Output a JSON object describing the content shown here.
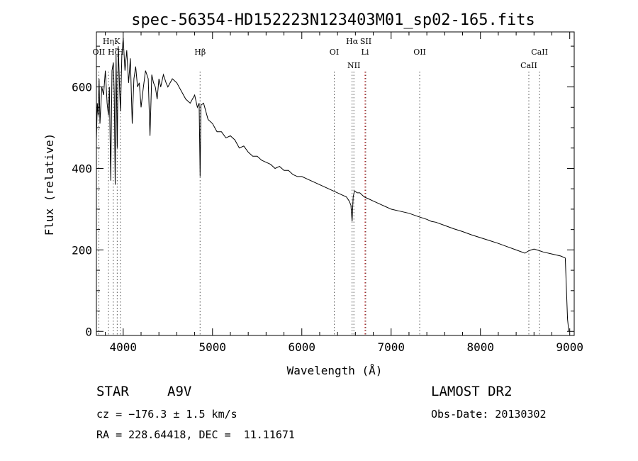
{
  "chart_data": {
    "type": "line",
    "title": "spec-56354-HD152223N123403M01_sp02-165.fits",
    "xlabel": "Wavelength (Å)",
    "ylabel": "Flux (relative)",
    "xlim": [
      3700,
      9050
    ],
    "ylim": [
      -10,
      735
    ],
    "xticks": [
      4000,
      5000,
      6000,
      7000,
      8000,
      9000
    ],
    "yticks": [
      0,
      200,
      400,
      600
    ],
    "grid": false,
    "line_color": "#000000",
    "series": [
      {
        "x": [
          3700,
          3710,
          3720,
          3730,
          3740,
          3760,
          3780,
          3800,
          3820,
          3835,
          3845,
          3860,
          3875,
          3890,
          3900,
          3910,
          3920,
          3933,
          3945,
          3960,
          3970,
          3985,
          4000,
          4020,
          4040,
          4060,
          4080,
          4101,
          4120,
          4140,
          4160,
          4180,
          4200,
          4226,
          4250,
          4280,
          4300,
          4320,
          4340,
          4360,
          4380,
          4400,
          4420,
          4450,
          4480,
          4500,
          4550,
          4600,
          4650,
          4700,
          4750,
          4800,
          4830,
          4850,
          4861,
          4870,
          4900,
          4950,
          5000,
          5050,
          5100,
          5150,
          5200,
          5250,
          5300,
          5350,
          5400,
          5450,
          5500,
          5550,
          5600,
          5650,
          5700,
          5750,
          5800,
          5850,
          5900,
          5950,
          6000,
          6050,
          6100,
          6150,
          6200,
          6250,
          6300,
          6350,
          6400,
          6450,
          6500,
          6530,
          6550,
          6563,
          6575,
          6590,
          6620,
          6650,
          6700,
          6750,
          6800,
          6850,
          6900,
          6950,
          7000,
          7100,
          7200,
          7300,
          7400,
          7450,
          7500,
          7600,
          7700,
          7800,
          7900,
          8000,
          8100,
          8200,
          8300,
          8400,
          8498,
          8542,
          8600,
          8662,
          8700,
          8800,
          8900,
          8950,
          8975,
          8985,
          8990
        ],
        "y": [
          470,
          560,
          530,
          620,
          510,
          600,
          580,
          640,
          560,
          530,
          600,
          370,
          640,
          660,
          580,
          360,
          680,
          450,
          700,
          590,
          540,
          680,
          720,
          640,
          690,
          610,
          670,
          510,
          620,
          650,
          600,
          610,
          550,
          600,
          640,
          620,
          480,
          630,
          610,
          600,
          570,
          620,
          600,
          630,
          610,
          600,
          620,
          610,
          590,
          570,
          560,
          580,
          550,
          560,
          380,
          555,
          560,
          520,
          510,
          490,
          490,
          475,
          480,
          470,
          450,
          455,
          440,
          430,
          430,
          420,
          415,
          410,
          400,
          405,
          395,
          395,
          385,
          380,
          380,
          375,
          370,
          365,
          360,
          355,
          350,
          345,
          340,
          335,
          330,
          320,
          310,
          270,
          330,
          345,
          340,
          340,
          330,
          325,
          320,
          315,
          310,
          305,
          300,
          295,
          290,
          282,
          275,
          270,
          268,
          260,
          252,
          245,
          237,
          230,
          223,
          216,
          208,
          200,
          192,
          198,
          202,
          198,
          195,
          190,
          185,
          180,
          30,
          10,
          0
        ]
      }
    ],
    "line_markers": [
      {
        "label": "OII",
        "x": 3727,
        "level": 1
      },
      {
        "label": "Hη",
        "x": 3835,
        "level": 0
      },
      {
        "label": "Hζ",
        "x": 3889,
        "level": 1
      },
      {
        "label": "K",
        "x": 3933,
        "level": 0
      },
      {
        "label": "H",
        "x": 3968,
        "level": 1
      },
      {
        "label": "Hβ",
        "x": 4861,
        "level": 1
      },
      {
        "label": "OI",
        "x": 6363,
        "level": 1
      },
      {
        "label": "Hα",
        "x": 6563,
        "level": 0
      },
      {
        "label": "NII",
        "x": 6583,
        "level": 2
      },
      {
        "label": "SII",
        "x": 6716,
        "level": 0
      },
      {
        "label": "Li",
        "x": 6708,
        "level": 1
      },
      {
        "label": "OII",
        "x": 7320,
        "level": 1
      },
      {
        "label": "CaII",
        "x": 8542,
        "level": 2
      },
      {
        "label": "CaII",
        "x": 8662,
        "level": 1
      }
    ],
    "red_markers": [
      6708
    ]
  },
  "info": {
    "class_label": "STAR",
    "subclass": "A9V",
    "cz": "cz = −176.3 ± 1.5 km/s",
    "coords": "RA = 228.64418, DEC =  11.11671",
    "survey": "LAMOST DR2",
    "obs_date": "Obs-Date: 20130302"
  }
}
